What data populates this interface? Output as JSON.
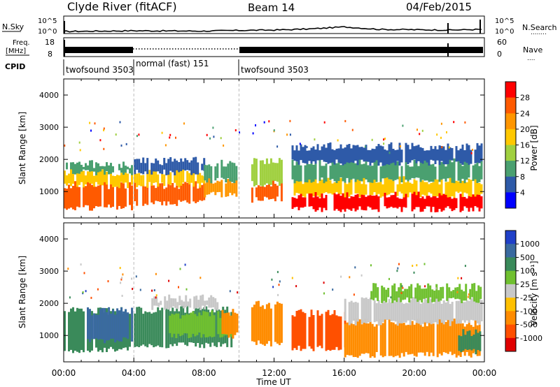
{
  "header": {
    "site": "Clyde River (fitACF)",
    "beam": "Beam 14",
    "date": "04/Feb/2015"
  },
  "noise_panel": {
    "left_label": "N.Sky",
    "right_label": "N.Search",
    "right_label_dots": "........",
    "left_ticks": [
      "10^5",
      "10^0"
    ],
    "right_ticks": [
      "10^5",
      "10^0"
    ]
  },
  "freq_panel": {
    "left_label_1": "Freq.",
    "left_label_2": "[MHz]",
    "right_label": "Nave",
    "right_label_dots": "....",
    "left_ticks": [
      "18",
      "8"
    ],
    "right_ticks": [
      "60",
      "0"
    ]
  },
  "cpid": {
    "label": "CPID",
    "segments": [
      {
        "name": "twofsound 3503",
        "start_hour": 0,
        "end_hour": 4
      },
      {
        "name": "normal (fast) 151",
        "start_hour": 4,
        "end_hour": 10
      },
      {
        "name": "twofsound 3503",
        "start_hour": 10,
        "end_hour": 24
      }
    ]
  },
  "power_colorbar": {
    "label": "Power [dB]",
    "ticks": [
      "28",
      "24",
      "20",
      "16",
      "12",
      "8",
      "4"
    ],
    "colors": [
      "#ff0000",
      "#ff5a00",
      "#ff9600",
      "#ffc800",
      "#a0d040",
      "#4aa070",
      "#2e5aa8",
      "#0000ff"
    ]
  },
  "velocity_colorbar": {
    "label": "Velocity [m s⁻¹]",
    "ticks": [
      "1000",
      "500",
      "100",
      "25",
      "-25",
      "-100",
      "-500",
      "-1000"
    ],
    "colors": [
      "#2040c8",
      "#3a6aa0",
      "#3a8a5a",
      "#70c030",
      "#c8c8c8",
      "#ffc000",
      "#ff8c00",
      "#ff5000",
      "#e00000"
    ]
  },
  "axes": {
    "x_label": "Time UT",
    "y_label": "Slant Range [km]",
    "x_ticks": [
      "00:00",
      "04:00",
      "08:00",
      "12:00",
      "16:00",
      "20:00",
      "00:00"
    ],
    "y_ticks": [
      "4000",
      "3000",
      "2000",
      "1000"
    ]
  },
  "chart_data": [
    {
      "type": "line",
      "title": "N.Sky",
      "x_unit": "hour UT",
      "xlim": [
        0,
        24
      ],
      "ylim_log10": [
        0,
        5
      ],
      "series": [
        {
          "name": "N.Sky",
          "x": [
            0,
            2,
            4,
            6,
            8,
            10,
            12,
            14,
            16,
            18,
            20,
            22,
            24
          ],
          "y_log10": [
            0.6,
            0.7,
            0.8,
            0.75,
            0.7,
            0.9,
            1.0,
            1.3,
            1.9,
            1.2,
            1.1,
            1.0,
            1.2
          ]
        }
      ]
    },
    {
      "type": "line",
      "title": "Freq.",
      "x_unit": "hour UT",
      "xlim": [
        0,
        24
      ],
      "ylim": [
        8,
        18
      ],
      "series": [
        {
          "name": "Freq.",
          "x": [
            0,
            4,
            4,
            10,
            10,
            24
          ],
          "y": [
            12.0,
            12.0,
            13.0,
            13.0,
            12.0,
            12.0
          ]
        }
      ]
    },
    {
      "type": "heatmap",
      "title": "Power [dB]",
      "xlabel": "Time UT",
      "ylabel": "Slant Range [km]",
      "xlim": [
        0,
        24
      ],
      "ylim": [
        180,
        4500
      ],
      "bands": [
        {
          "t0": 0.0,
          "t1": 3.9,
          "r0": 500,
          "r1": 1200,
          "value": 27
        },
        {
          "t0": 0.0,
          "t1": 3.9,
          "r0": 1200,
          "r1": 1600,
          "value": 20
        },
        {
          "t0": 0.0,
          "t1": 3.9,
          "r0": 1600,
          "r1": 1850,
          "value": 12
        },
        {
          "t0": 4.0,
          "t1": 8.0,
          "r0": 650,
          "r1": 1200,
          "value": 27
        },
        {
          "t0": 4.0,
          "t1": 8.0,
          "r0": 1200,
          "r1": 1600,
          "value": 19
        },
        {
          "t0": 4.0,
          "t1": 8.0,
          "r0": 1600,
          "r1": 1950,
          "value": 8
        },
        {
          "t0": 8.0,
          "t1": 9.8,
          "r0": 900,
          "r1": 1350,
          "value": 24
        },
        {
          "t0": 8.0,
          "t1": 9.8,
          "r0": 1350,
          "r1": 1900,
          "value": 12
        },
        {
          "t0": 10.7,
          "t1": 12.4,
          "r0": 750,
          "r1": 1250,
          "value": 26
        },
        {
          "t0": 10.7,
          "t1": 12.4,
          "r0": 1250,
          "r1": 1950,
          "value": 14
        },
        {
          "t0": 13.0,
          "t1": 23.8,
          "r0": 450,
          "r1": 900,
          "value": 28
        },
        {
          "t0": 13.0,
          "t1": 23.8,
          "r0": 900,
          "r1": 1350,
          "value": 20
        },
        {
          "t0": 13.0,
          "t1": 23.8,
          "r0": 1350,
          "r1": 1900,
          "value": 12
        },
        {
          "t0": 13.0,
          "t1": 23.8,
          "r0": 1900,
          "r1": 2400,
          "value": 6
        }
      ]
    },
    {
      "type": "heatmap",
      "title": "Velocity [m s⁻¹]",
      "xlabel": "Time UT",
      "ylabel": "Slant Range [km]",
      "xlim": [
        0,
        24
      ],
      "ylim": [
        180,
        4500
      ],
      "bands": [
        {
          "t0": 0.0,
          "t1": 3.9,
          "r0": 550,
          "r1": 1750,
          "value": 300
        },
        {
          "t0": 1.2,
          "t1": 3.9,
          "r0": 850,
          "r1": 1750,
          "value": 700
        },
        {
          "t0": 4.0,
          "t1": 9.6,
          "r0": 700,
          "r1": 1800,
          "value": 250
        },
        {
          "t0": 6.0,
          "t1": 9.6,
          "r0": 1000,
          "r1": 1650,
          "value": 80
        },
        {
          "t0": 5.0,
          "t1": 8.8,
          "r0": 1850,
          "r1": 2150,
          "value": 10
        },
        {
          "t0": 9.0,
          "t1": 9.9,
          "r0": 1000,
          "r1": 1700,
          "value": -300
        },
        {
          "t0": 10.7,
          "t1": 12.4,
          "r0": 750,
          "r1": 1950,
          "value": -300
        },
        {
          "t0": 13.0,
          "t1": 16.0,
          "r0": 600,
          "r1": 1700,
          "value": -600
        },
        {
          "t0": 16.0,
          "t1": 23.8,
          "r0": 400,
          "r1": 1400,
          "value": -300
        },
        {
          "t0": 16.0,
          "t1": 23.8,
          "r0": 1400,
          "r1": 2100,
          "value": 10
        },
        {
          "t0": 17.5,
          "t1": 23.8,
          "r0": 2100,
          "r1": 2500,
          "value": 80
        },
        {
          "t0": 22.5,
          "t1": 23.8,
          "r0": 500,
          "r1": 1100,
          "value": 300
        }
      ]
    }
  ]
}
